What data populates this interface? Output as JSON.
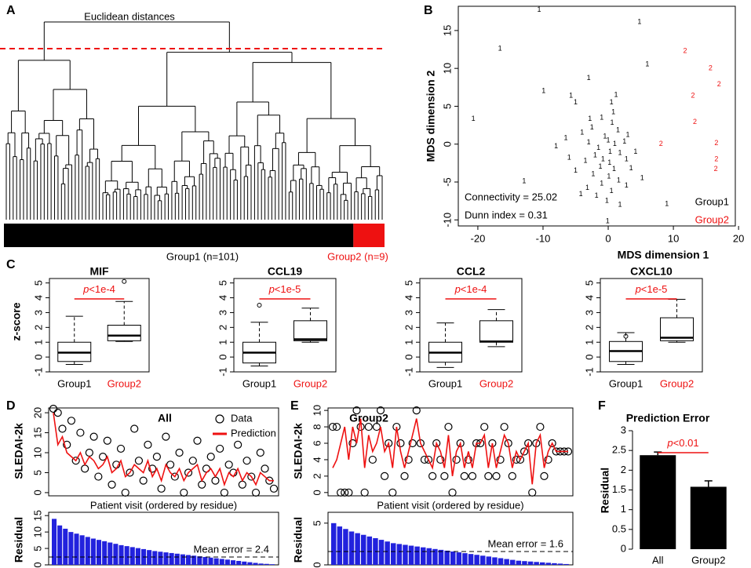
{
  "chart_data": [
    {
      "type": "dendrogram",
      "panel": "A",
      "title": "Euclidean distances",
      "groups": [
        {
          "name": "Group1 (n=101)",
          "n": 101,
          "color": "#000000"
        },
        {
          "name": "Group2 (n=9)",
          "n": 9,
          "color": "#ee1111"
        }
      ]
    },
    {
      "type": "scatter",
      "panel": "B",
      "xlabel": "MDS dimension 1",
      "ylabel": "MDS dimension 2",
      "xlim": [
        -23,
        19.5
      ],
      "xticks": [
        -20,
        -10,
        0,
        10,
        20
      ],
      "ylim": [
        -10.8,
        18.2
      ],
      "yticks": [
        -10,
        -5,
        0,
        5,
        10,
        15
      ],
      "annotations": [
        "Connectivity = 25.02",
        "Dunn index = 0.31"
      ],
      "legend": "bottom right",
      "series": [
        {
          "name": "Group1",
          "marker": "1",
          "color": "#000000",
          "x": [
            -10.6,
            4.8,
            -16.6,
            6,
            -3,
            -9.9,
            -20.7,
            -5.7,
            -12.9,
            -0.1,
            9,
            -4.2,
            0.5,
            0.8,
            -1,
            0.6,
            -2.5,
            -4,
            1.5,
            -0.5,
            -6.5,
            -3,
            0,
            1,
            2.5,
            -1.5,
            -8,
            0.3,
            -2,
            1.8,
            -0.8,
            0.2,
            -3.5,
            2.8,
            -1.2,
            0.9,
            -5,
            3.5,
            -2.3,
            0.1,
            1.6,
            -1,
            2.8,
            -3.2,
            0.5,
            5.2,
            4.2,
            -6,
            -2.8,
            1.2,
            -0.2,
            1.8,
            -5,
            -1.8,
            3
          ],
          "y": [
            17.7,
            16.1,
            12.6,
            10.5,
            8.7,
            7,
            3.3,
            6.4,
            -4.9,
            -10.2,
            -7.9,
            -6.6,
            5.5,
            4.2,
            3.5,
            2.8,
            2.2,
            1.5,
            1.8,
            1,
            0.8,
            0.2,
            0.5,
            0,
            0.3,
            -0.5,
            -0.3,
            -1,
            -1.5,
            -1.2,
            -2,
            -2.5,
            -2.2,
            -2,
            -3,
            -3.3,
            -3.5,
            -3.2,
            -4,
            -4.3,
            -4.8,
            -5.2,
            -5.5,
            -5.8,
            -6.2,
            -4.5,
            -1,
            -1.8,
            3.3,
            6.5,
            -7.5,
            -8,
            5.5,
            -6.8,
            1.2
          ]
        },
        {
          "name": "Group2",
          "marker": "2",
          "color": "#ee1111",
          "x": [
            11.8,
            15.7,
            17,
            13,
            13.3,
            16.6,
            16.6,
            16.5,
            8.1
          ],
          "y": [
            12.3,
            10,
            7.9,
            6.4,
            2.9,
            0.1,
            -2,
            -3.3,
            0
          ]
        }
      ]
    },
    {
      "type": "box",
      "panel": "C",
      "title": "MIF",
      "ylabel": "z-score",
      "categories": [
        "Group1",
        "Group2"
      ],
      "label_colors": [
        "#000000",
        "#ee1111"
      ],
      "ylim": [
        -1,
        5.3
      ],
      "yticks": [
        -1,
        0,
        1,
        2,
        3,
        4,
        5
      ],
      "annotation": {
        "italic": "p",
        "text": "<1e-4"
      },
      "annotation_color": "#ee1111",
      "boxes": [
        {
          "min": -0.5,
          "q1": -0.3,
          "median": 0.3,
          "q3": 1.0,
          "max": 2.75,
          "outliers": []
        },
        {
          "min": 1.05,
          "q1": 1.1,
          "median": 1.45,
          "q3": 2.15,
          "max": 3.75,
          "outliers": [
            5.1
          ]
        }
      ]
    },
    {
      "type": "box",
      "title": "CCL19",
      "categories": [
        "Group1",
        "Group2"
      ],
      "label_colors": [
        "#000000",
        "#ee1111"
      ],
      "ylim": [
        -1,
        5.3
      ],
      "yticks": [
        -1,
        0,
        1,
        2,
        3,
        4,
        5
      ],
      "annotation": {
        "italic": "p",
        "text": "<1e-5"
      },
      "annotation_color": "#ee1111",
      "boxes": [
        {
          "min": -0.6,
          "q1": -0.4,
          "median": 0.3,
          "q3": 1.0,
          "max": 2.35,
          "outliers": [
            3.5
          ]
        },
        {
          "min": 1.0,
          "q1": 1.1,
          "median": 1.2,
          "q3": 2.45,
          "max": 3.3,
          "outliers": []
        }
      ]
    },
    {
      "type": "box",
      "title": "CCL2",
      "categories": [
        "Group1",
        "Group2"
      ],
      "label_colors": [
        "#000000",
        "#ee1111"
      ],
      "ylim": [
        -1,
        5.3
      ],
      "yticks": [
        -1,
        0,
        1,
        2,
        3,
        4,
        5
      ],
      "annotation": {
        "italic": "p",
        "text": "<1e-4"
      },
      "annotation_color": "#ee1111",
      "boxes": [
        {
          "min": -0.7,
          "q1": -0.35,
          "median": 0.3,
          "q3": 1.0,
          "max": 2.3,
          "outliers": []
        },
        {
          "min": 0.7,
          "q1": 1.0,
          "median": 1.05,
          "q3": 2.45,
          "max": 3.2,
          "outliers": []
        }
      ]
    },
    {
      "type": "box",
      "title": "CXCL10",
      "categories": [
        "Group1",
        "Group2"
      ],
      "label_colors": [
        "#000000",
        "#ee1111"
      ],
      "ylim": [
        -1,
        5.3
      ],
      "yticks": [
        -1,
        0,
        1,
        2,
        3,
        4,
        5
      ],
      "annotation": {
        "italic": "p",
        "text": "<1e-5"
      },
      "annotation_color": "#ee1111",
      "boxes": [
        {
          "min": -0.5,
          "q1": -0.3,
          "median": 0.4,
          "q3": 1.05,
          "max": 1.65,
          "outliers": [
            1.4
          ]
        },
        {
          "min": 1.0,
          "q1": 1.1,
          "median": 1.3,
          "q3": 2.65,
          "max": 3.9,
          "outliers": []
        }
      ]
    },
    {
      "type": "line",
      "panel": "D",
      "title": "All",
      "ylabel": "SLEDAI-2k",
      "xlabel": "Patient visit (ordered by residue)",
      "ylim": [
        -0.8,
        21.2
      ],
      "yticks": [
        0,
        5,
        10,
        15,
        20
      ],
      "legend": "top right",
      "series": [
        {
          "name": "Data",
          "color": "#000000",
          "style": "points",
          "values": [
            21,
            20,
            16,
            12,
            18,
            8,
            15,
            6,
            10,
            14,
            4,
            9,
            13,
            2,
            7,
            11,
            0,
            5,
            16,
            8,
            3,
            12,
            6,
            9,
            1,
            14,
            7,
            4,
            10,
            0,
            5,
            8,
            13,
            2,
            6,
            9,
            3,
            11,
            0,
            7,
            5,
            12,
            2,
            8,
            4,
            0,
            10,
            6,
            3,
            1
          ]
        },
        {
          "name": "Prediction",
          "color": "#ee1111",
          "style": "line",
          "values": [
            20,
            12,
            14,
            10,
            9,
            8,
            10,
            7,
            9,
            8,
            6,
            7,
            9,
            5,
            6,
            8,
            4,
            5,
            7,
            6,
            5,
            8,
            4,
            6,
            3,
            7,
            5,
            4,
            6,
            3,
            5,
            6,
            7,
            3,
            5,
            6,
            4,
            6,
            2,
            5,
            4,
            6,
            3,
            5,
            4,
            2,
            5,
            4,
            3,
            3
          ]
        }
      ]
    },
    {
      "type": "residual",
      "ylabel": "Residual",
      "ylim": [
        0,
        16
      ],
      "yticks": [
        0,
        5,
        10,
        15
      ],
      "color": "#2222dd",
      "mean_error": 2.4,
      "mean_error_label": "Mean error = 2.4",
      "values": [
        14,
        12,
        11,
        10,
        9.5,
        9,
        8.5,
        8,
        7.6,
        7.2,
        6.8,
        6.4,
        6,
        5.7,
        5.4,
        5.1,
        4.8,
        4.5,
        4.2,
        4,
        3.8,
        3.6,
        3.4,
        3.2,
        3,
        2.8,
        2.6,
        2.4,
        2.2,
        2,
        1.8,
        1.6,
        1.4,
        1.2,
        1,
        0.8,
        0.6,
        0.4,
        0.3,
        0.2
      ]
    },
    {
      "type": "line",
      "panel": "E",
      "title": "Group2",
      "ylabel": "SLEDAI-2k",
      "xlabel": "Patient visit (ordered by residue)",
      "ylim": [
        -0.4,
        10.3
      ],
      "yticks": [
        0,
        2,
        4,
        6,
        8,
        10
      ],
      "series": [
        {
          "name": "Data",
          "color": "#000000",
          "style": "points",
          "values": [
            8,
            8,
            0,
            0,
            0,
            6,
            10,
            8,
            0,
            8,
            4,
            8,
            10,
            2,
            6,
            0,
            8,
            6,
            2,
            4,
            6,
            10,
            6,
            4,
            4,
            2,
            6,
            4,
            2,
            8,
            0,
            4,
            6,
            2,
            4,
            2,
            6,
            6,
            8,
            2,
            6,
            2,
            4,
            8,
            6,
            2,
            4,
            4,
            5,
            6,
            0,
            6,
            8,
            2,
            4,
            6,
            5,
            5,
            5,
            5
          ]
        },
        {
          "name": "Prediction",
          "color": "#ee1111",
          "style": "line",
          "values": [
            3,
            4,
            6,
            8,
            4,
            8,
            6,
            9,
            3,
            7,
            5,
            6,
            8,
            5,
            6,
            3,
            8,
            5,
            3,
            5,
            7,
            9,
            6,
            5,
            4,
            3,
            6,
            5,
            3,
            7,
            2,
            5,
            6,
            3,
            5,
            3,
            6,
            6,
            7,
            3,
            6,
            3,
            5,
            7,
            6,
            3,
            5,
            4,
            5,
            6,
            1,
            6,
            7,
            3,
            5,
            6,
            5,
            5,
            5,
            5
          ]
        }
      ]
    },
    {
      "type": "residual",
      "ylabel": "Residual",
      "ylim": [
        0,
        6.3
      ],
      "yticks": [
        0,
        5
      ],
      "color": "#2222dd",
      "mean_error": 1.6,
      "mean_error_label": "Mean error = 1.6",
      "values": [
        5,
        4.6,
        4.3,
        4,
        3.8,
        3.6,
        3.4,
        3.2,
        3,
        2.8,
        2.6,
        2.5,
        2.4,
        2.3,
        2.2,
        2.1,
        2,
        1.9,
        1.8,
        1.7,
        1.6,
        1.5,
        1.4,
        1.3,
        1.2,
        1.1,
        1,
        0.9,
        0.8,
        0.7,
        0.6,
        0.5,
        0.45,
        0.4,
        0.35,
        0.3,
        0.25,
        0.2,
        0.15,
        0.1
      ]
    },
    {
      "type": "bar",
      "panel": "F",
      "title": "Prediction Error",
      "ylabel": "Residual",
      "categories": [
        "All",
        "Group2"
      ],
      "values": [
        2.38,
        1.58
      ],
      "errors": [
        0.08,
        0.15
      ],
      "color": "#000000",
      "ylim": [
        0,
        3
      ],
      "yticks": [
        0,
        0.5,
        1,
        1.5,
        2,
        2.5,
        3
      ],
      "annotation": {
        "italic": "p",
        "text": "<0.01"
      },
      "annotation_color": "#ee1111"
    }
  ]
}
